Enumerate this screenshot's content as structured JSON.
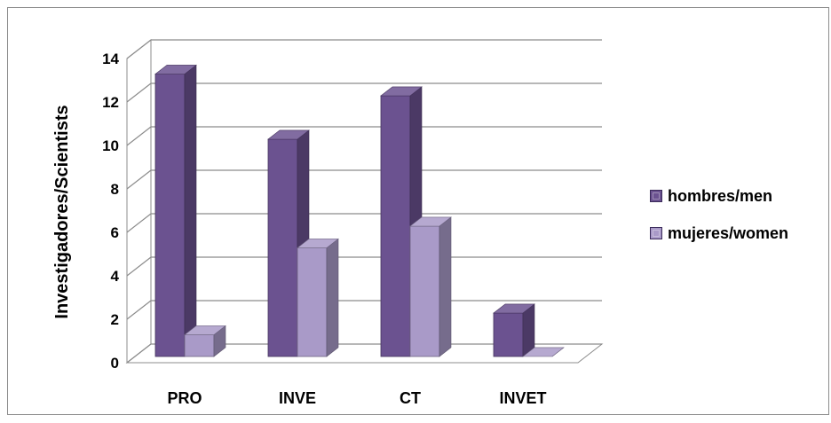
{
  "chart_data": {
    "type": "bar",
    "style": "3d-clustered-column",
    "categories": [
      "PRO",
      "INVE",
      "CT",
      "INVET"
    ],
    "series": [
      {
        "name": "hombres/men",
        "values": [
          13,
          10,
          12,
          2
        ],
        "color": "#6b5290"
      },
      {
        "name": "mujeres/women",
        "values": [
          1,
          5,
          6,
          0
        ],
        "color": "#a99ac8"
      }
    ],
    "title": "",
    "xlabel": "",
    "ylabel": "Investigadores/Scientists",
    "ylim": [
      0,
      14
    ],
    "yticks": [
      0,
      2,
      4,
      6,
      8,
      10,
      12,
      14
    ],
    "grid": true,
    "legend_position": "right"
  }
}
